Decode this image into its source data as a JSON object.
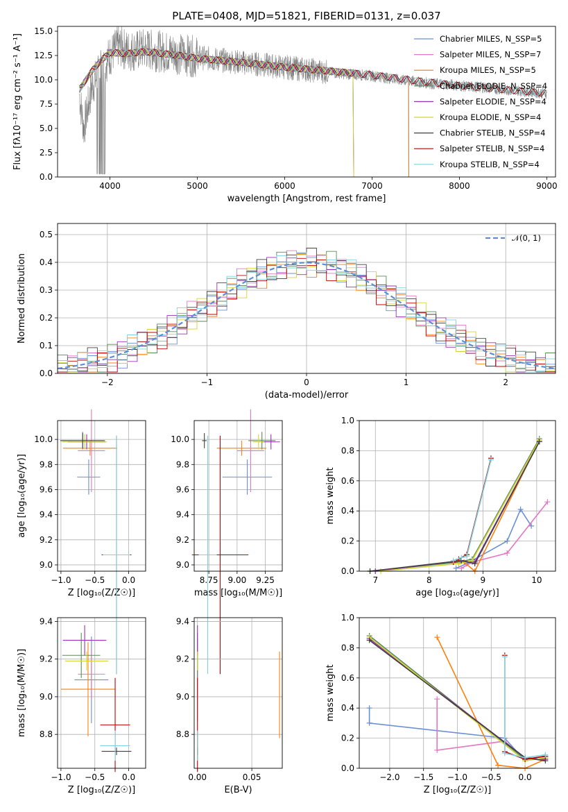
{
  "chart_data": [
    {
      "id": "spectrum",
      "type": "line",
      "title": "PLATE=0408, MJD=51821, FIBERID=0131, z=0.037",
      "xlabel": "wavelength [Angstrom, rest frame]",
      "ylabel": "Flux [fλ10⁻¹⁷ erg cm⁻² s⁻¹ A⁻¹]",
      "xlim": [
        3400,
        9100
      ],
      "ylim": [
        0,
        15.5
      ],
      "xticks": [
        4000,
        5000,
        6000,
        7000,
        8000,
        9000
      ],
      "yticks": [
        0.0,
        2.5,
        5.0,
        7.5,
        10.0,
        12.5,
        15.0
      ],
      "legend_placement": "upper-right",
      "observed": {
        "x": [
          3650,
          3700,
          3800,
          3900,
          4000,
          4100,
          4200,
          4300,
          4400,
          4500,
          4700,
          4900,
          5100,
          5300,
          5500,
          5700,
          5900,
          6100,
          6300,
          6500,
          6700,
          6900,
          7100,
          7300,
          7500,
          7700,
          7900,
          8100,
          8300,
          8500,
          8700,
          8900,
          9000
        ],
        "y": [
          8.5,
          5.0,
          9.5,
          11.0,
          12.5,
          13.5,
          13.0,
          13.0,
          13.2,
          13.0,
          12.8,
          12.5,
          12.2,
          12.0,
          11.8,
          11.6,
          11.4,
          11.2,
          11.0,
          10.8,
          10.6,
          10.5,
          10.3,
          10.0,
          9.8,
          9.6,
          9.5,
          9.3,
          9.2,
          9.0,
          8.9,
          8.7,
          8.6
        ]
      },
      "model_x": [
        3650,
        3800,
        3900,
        4000,
        4200,
        4400,
        4600,
        4800,
        5000,
        5500,
        6000,
        6500,
        7000,
        7500,
        8000,
        8500,
        9000
      ],
      "model_y": [
        9.0,
        11.0,
        12.0,
        12.8,
        12.7,
        12.9,
        12.7,
        12.5,
        12.2,
        11.8,
        11.3,
        10.9,
        10.5,
        9.9,
        9.4,
        9.0,
        8.6
      ],
      "series": [
        {
          "name": "Chabrier MILES, N_SSP=5",
          "color": "#6b8fd6",
          "xmax": 7420
        },
        {
          "name": "Salpeter MILES, N_SSP=7",
          "color": "#e377c2",
          "xmax": 7420
        },
        {
          "name": "Kroupa MILES, N_SSP=5",
          "color": "#c58f18",
          "xmax": 7420
        },
        {
          "name": "Chabrier ELODIE, N_SSP=4",
          "color": "#5a8a5a",
          "xmax": 6790
        },
        {
          "name": "Salpeter ELODIE, N_SSP=4",
          "color": "#9a31b5",
          "xmax": 6790
        },
        {
          "name": "Kroupa ELODIE, N_SSP=4",
          "color": "#d4d43a",
          "xmax": 6790
        },
        {
          "name": "Chabrier STELIB, N_SSP=4",
          "color": "#404040",
          "xmax": 9000
        },
        {
          "name": "Salpeter STELIB, N_SSP=4",
          "color": "#c00000",
          "xmax": 9000
        },
        {
          "name": "Kroupa STELIB, N_SSP=4",
          "color": "#7fd3df",
          "xmax": 9000
        }
      ]
    },
    {
      "id": "residuals",
      "type": "line",
      "xlabel": "(data-model)/error",
      "ylabel": "Normed distribution",
      "xlim": [
        -2.5,
        2.5
      ],
      "ylim": [
        0,
        0.54
      ],
      "xticks": [
        -2,
        -1,
        0,
        1,
        2
      ],
      "yticks": [
        0.0,
        0.1,
        0.2,
        0.3,
        0.4,
        0.5
      ],
      "grid": true,
      "legend_placement": "upper-right",
      "reference": {
        "name": "𝒩(0, 1)",
        "color": "#5b8ed6"
      },
      "bin_width": 0.1,
      "hist_colors": [
        "#6b8fd6",
        "#e377c2",
        "#ff7f0e",
        "#5a8a5a",
        "#9a31b5",
        "#d4d43a",
        "#404040",
        "#c00000",
        "#7fd3df"
      ]
    },
    {
      "id": "age-vs-Z",
      "type": "scatter",
      "xlabel": "Z [log₁₀(Z/Z☉)]",
      "ylabel": "age  [log₁₀(age/yr)]",
      "xlim": [
        -1.05,
        0.25
      ],
      "ylim": [
        8.95,
        10.15
      ],
      "xticks": [
        -1.0,
        -0.5,
        0.0
      ],
      "yticks": [
        9.0,
        9.2,
        9.4,
        9.6,
        9.8,
        10.0
      ],
      "grid": true,
      "points": [
        {
          "x": -0.59,
          "y": 9.7,
          "xerr": 0.17,
          "yerr": 0.14,
          "color": "#6b8fd6"
        },
        {
          "x": -0.55,
          "y": 9.91,
          "xerr": 0.2,
          "yerr": 0.33,
          "color": "#e377c2"
        },
        {
          "x": -0.57,
          "y": 9.93,
          "xerr": 0.4,
          "yerr": 0.06,
          "color": "#ff7f0e"
        },
        {
          "x": -0.68,
          "y": 9.99,
          "xerr": 0.3,
          "yerr": 0.07,
          "color": "#5a8a5a"
        },
        {
          "x": -0.62,
          "y": 9.98,
          "xerr": 0.28,
          "yerr": 0.06,
          "color": "#9a31b5"
        },
        {
          "x": -0.65,
          "y": 9.98,
          "xerr": 0.33,
          "yerr": 0.06,
          "color": "#d4d43a"
        },
        {
          "x": -0.68,
          "y": 9.99,
          "xerr": 0.33,
          "yerr": 0.06,
          "color": "#404040"
        },
        {
          "x": -0.18,
          "y": 9.08,
          "xerr": 0.22,
          "yerr": 0.95,
          "color": "#c00000"
        },
        {
          "x": -0.18,
          "y": 9.08,
          "xerr": 0.2,
          "yerr": 0.95,
          "color": "#7fd3df"
        }
      ]
    },
    {
      "id": "age-vs-mass",
      "type": "scatter",
      "xlabel": "mass [log₁₀(M/M☉)]",
      "ylabel": "",
      "xlim": [
        8.62,
        9.4
      ],
      "ylim": [
        8.95,
        10.15
      ],
      "xticks": [
        8.75,
        9.0,
        9.25
      ],
      "yticks": [
        9.0,
        9.2,
        9.4,
        9.6,
        9.8,
        10.0
      ],
      "grid": true,
      "points": [
        {
          "x": 9.09,
          "y": 9.7,
          "xerr": 0.22,
          "yerr": 0.14,
          "color": "#6b8fd6"
        },
        {
          "x": 9.12,
          "y": 9.91,
          "xerr": 0.12,
          "yerr": 0.33,
          "color": "#e377c2"
        },
        {
          "x": 9.04,
          "y": 9.93,
          "xerr": 0.22,
          "yerr": 0.06,
          "color": "#ff7f0e"
        },
        {
          "x": 9.22,
          "y": 9.99,
          "xerr": 0.12,
          "yerr": 0.07,
          "color": "#5a8a5a"
        },
        {
          "x": 9.3,
          "y": 9.98,
          "xerr": 0.08,
          "yerr": 0.06,
          "color": "#9a31b5"
        },
        {
          "x": 9.19,
          "y": 9.98,
          "xerr": 0.05,
          "yerr": 0.06,
          "color": "#d4d43a"
        },
        {
          "x": 8.71,
          "y": 9.99,
          "xerr": 0.02,
          "yerr": 0.06,
          "color": "#404040"
        },
        {
          "x": 8.85,
          "y": 9.08,
          "xerr": 0.25,
          "yerr": 0.95,
          "color": "#c00000"
        },
        {
          "x": 8.74,
          "y": 9.08,
          "xerr": 0.08,
          "yerr": 0.95,
          "color": "#7fd3df"
        }
      ]
    },
    {
      "id": "massweight-vs-age",
      "type": "line",
      "xlabel": "age  [log₁₀(age/yr)]",
      "ylabel": "mass weight",
      "xlim": [
        6.7,
        10.35
      ],
      "ylim": [
        0,
        1.0
      ],
      "xticks": [
        7,
        8,
        9,
        10
      ],
      "yticks": [
        0.0,
        0.2,
        0.4,
        0.6,
        0.8,
        1.0
      ],
      "grid": true,
      "series": [
        {
          "color": "#6b8fd6",
          "x": [
            8.5,
            8.7,
            8.8,
            9.45,
            9.7,
            9.9
          ],
          "y": [
            0.02,
            0.05,
            0.07,
            0.2,
            0.41,
            0.3
          ]
        },
        {
          "color": "#e377c2",
          "x": [
            8.6,
            8.8,
            9.45,
            10.2
          ],
          "y": [
            0.02,
            0.06,
            0.12,
            0.46
          ]
        },
        {
          "color": "#ff7f0e",
          "x": [
            8.55,
            8.65,
            8.85,
            10.05
          ],
          "y": [
            0.05,
            0.06,
            0.0,
            0.87
          ]
        },
        {
          "color": "#5a8a5a",
          "x": [
            6.9,
            8.55,
            8.8,
            10.05
          ],
          "y": [
            0.0,
            0.06,
            0.08,
            0.88
          ]
        },
        {
          "color": "#9a31b5",
          "x": [
            7.0,
            8.6,
            8.85,
            10.05
          ],
          "y": [
            0.0,
            0.07,
            0.06,
            0.86
          ]
        },
        {
          "color": "#d4d43a",
          "x": [
            7.1,
            8.55,
            8.8,
            10.05
          ],
          "y": [
            0.0,
            0.05,
            0.07,
            0.87
          ]
        },
        {
          "color": "#404040",
          "x": [
            6.9,
            8.6,
            8.85,
            10.05
          ],
          "y": [
            0.0,
            0.07,
            0.05,
            0.86
          ]
        },
        {
          "color": "#c00000",
          "x": [
            8.45,
            8.55,
            8.7,
            9.15
          ],
          "y": [
            0.06,
            0.08,
            0.11,
            0.75
          ]
        },
        {
          "color": "#7fd3df",
          "x": [
            8.45,
            8.6,
            8.7,
            9.15
          ],
          "y": [
            0.07,
            0.09,
            0.1,
            0.74
          ]
        }
      ]
    },
    {
      "id": "mass-vs-Z",
      "type": "scatter",
      "xlabel": "Z [log₁₀(Z/Z☉)]",
      "ylabel": "mass [log₁₀(M/M☉)]",
      "xlim": [
        -1.05,
        0.25
      ],
      "ylim": [
        8.62,
        9.42
      ],
      "xticks": [
        -1.0,
        -0.5,
        0.0
      ],
      "yticks": [
        8.8,
        9.0,
        9.2,
        9.4
      ],
      "grid": true,
      "points": [
        {
          "x": -0.55,
          "y": 9.09,
          "xerr": 0.25,
          "yerr": 0.23,
          "color": "#6b8fd6"
        },
        {
          "x": -0.55,
          "y": 9.12,
          "xerr": 0.2,
          "yerr": 0.13,
          "color": "#e377c2"
        },
        {
          "x": -0.6,
          "y": 9.04,
          "xerr": 0.4,
          "yerr": 0.25,
          "color": "#ff7f0e"
        },
        {
          "x": -0.7,
          "y": 9.22,
          "xerr": 0.28,
          "yerr": 0.12,
          "color": "#5a8a5a"
        },
        {
          "x": -0.65,
          "y": 9.3,
          "xerr": 0.32,
          "yerr": 0.08,
          "color": "#9a31b5"
        },
        {
          "x": -0.62,
          "y": 9.19,
          "xerr": 0.32,
          "yerr": 0.05,
          "color": "#d4d43a"
        },
        {
          "x": -0.18,
          "y": 8.71,
          "xerr": 0.22,
          "yerr": 0.02,
          "color": "#404040"
        },
        {
          "x": -0.2,
          "y": 8.85,
          "xerr": 0.22,
          "yerr": 0.25,
          "color": "#c00000"
        },
        {
          "x": -0.2,
          "y": 8.74,
          "xerr": 0.22,
          "yerr": 0.08,
          "color": "#7fd3df"
        }
      ]
    },
    {
      "id": "mass-vs-ebv",
      "type": "scatter",
      "xlabel": "E(B-V)",
      "ylabel": "",
      "xlim": [
        -0.003,
        0.078
      ],
      "ylim": [
        8.62,
        9.42
      ],
      "xticks": [
        0.0,
        0.05
      ],
      "yticks": [
        8.8,
        9.0,
        9.2,
        9.4
      ],
      "grid": true,
      "points": [
        {
          "x": 0.0,
          "y": 9.09,
          "xerr": 0,
          "yerr": 0.22,
          "color": "#6b8fd6"
        },
        {
          "x": 0.0,
          "y": 9.12,
          "xerr": 0,
          "yerr": 0.13,
          "color": "#e377c2"
        },
        {
          "x": 0.0755,
          "y": 9.01,
          "xerr": 0,
          "yerr": 0.23,
          "color": "#ff7f0e"
        },
        {
          "x": 0.0,
          "y": 9.22,
          "xerr": 0,
          "yerr": 0.12,
          "color": "#5a8a5a"
        },
        {
          "x": 0.0,
          "y": 9.3,
          "xerr": 0,
          "yerr": 0.08,
          "color": "#9a31b5"
        },
        {
          "x": 0.0,
          "y": 9.19,
          "xerr": 0,
          "yerr": 0.05,
          "color": "#d4d43a"
        },
        {
          "x": 0.0,
          "y": 8.71,
          "xerr": 0,
          "yerr": 0.02,
          "color": "#404040"
        },
        {
          "x": 0.0,
          "y": 8.85,
          "xerr": 0,
          "yerr": 0.25,
          "color": "#c00000"
        },
        {
          "x": 0.0,
          "y": 8.74,
          "xerr": 0,
          "yerr": 0.08,
          "color": "#7fd3df"
        }
      ]
    },
    {
      "id": "massweight-vs-Z",
      "type": "line",
      "xlabel": "Z [log₁₀(Z/Z☉)]",
      "ylabel": "mass weight",
      "xlim": [
        -2.45,
        0.45
      ],
      "ylim": [
        0,
        1.0
      ],
      "xticks": [
        -2.0,
        -1.5,
        -1.0,
        -0.5,
        0.0
      ],
      "yticks": [
        0.0,
        0.2,
        0.4,
        0.6,
        0.8,
        1.0
      ],
      "grid": true,
      "series": [
        {
          "color": "#6b8fd6",
          "x": [
            -2.3,
            -2.3,
            -0.3,
            0.0,
            0.3
          ],
          "y": [
            0.4,
            0.3,
            0.2,
            0.05,
            0.07
          ]
        },
        {
          "color": "#e377c2",
          "x": [
            -1.3,
            -1.3,
            -0.3,
            0.0,
            0.3
          ],
          "y": [
            0.46,
            0.12,
            0.18,
            0.06,
            0.06
          ]
        },
        {
          "color": "#ff7f0e",
          "x": [
            -1.3,
            -0.4,
            0.0,
            0.3
          ],
          "y": [
            0.87,
            0.02,
            0.0,
            0.06
          ]
        },
        {
          "color": "#5a8a5a",
          "x": [
            -2.3,
            0.0,
            0.3
          ],
          "y": [
            0.88,
            0.06,
            0.08
          ]
        },
        {
          "color": "#9a31b5",
          "x": [
            -2.3,
            0.0,
            0.3
          ],
          "y": [
            0.86,
            0.07,
            0.06
          ]
        },
        {
          "color": "#d4d43a",
          "x": [
            -2.3,
            0.0,
            0.3
          ],
          "y": [
            0.87,
            0.05,
            0.07
          ]
        },
        {
          "color": "#404040",
          "x": [
            -2.3,
            0.0,
            0.3
          ],
          "y": [
            0.85,
            0.07,
            0.05
          ]
        },
        {
          "color": "#c00000",
          "x": [
            -0.3,
            -0.3,
            0.0,
            0.3
          ],
          "y": [
            0.75,
            0.11,
            0.06,
            0.08
          ]
        },
        {
          "color": "#7fd3df",
          "x": [
            -0.3,
            -0.3,
            0.0,
            0.3
          ],
          "y": [
            0.74,
            0.1,
            0.07,
            0.09
          ]
        }
      ]
    }
  ]
}
